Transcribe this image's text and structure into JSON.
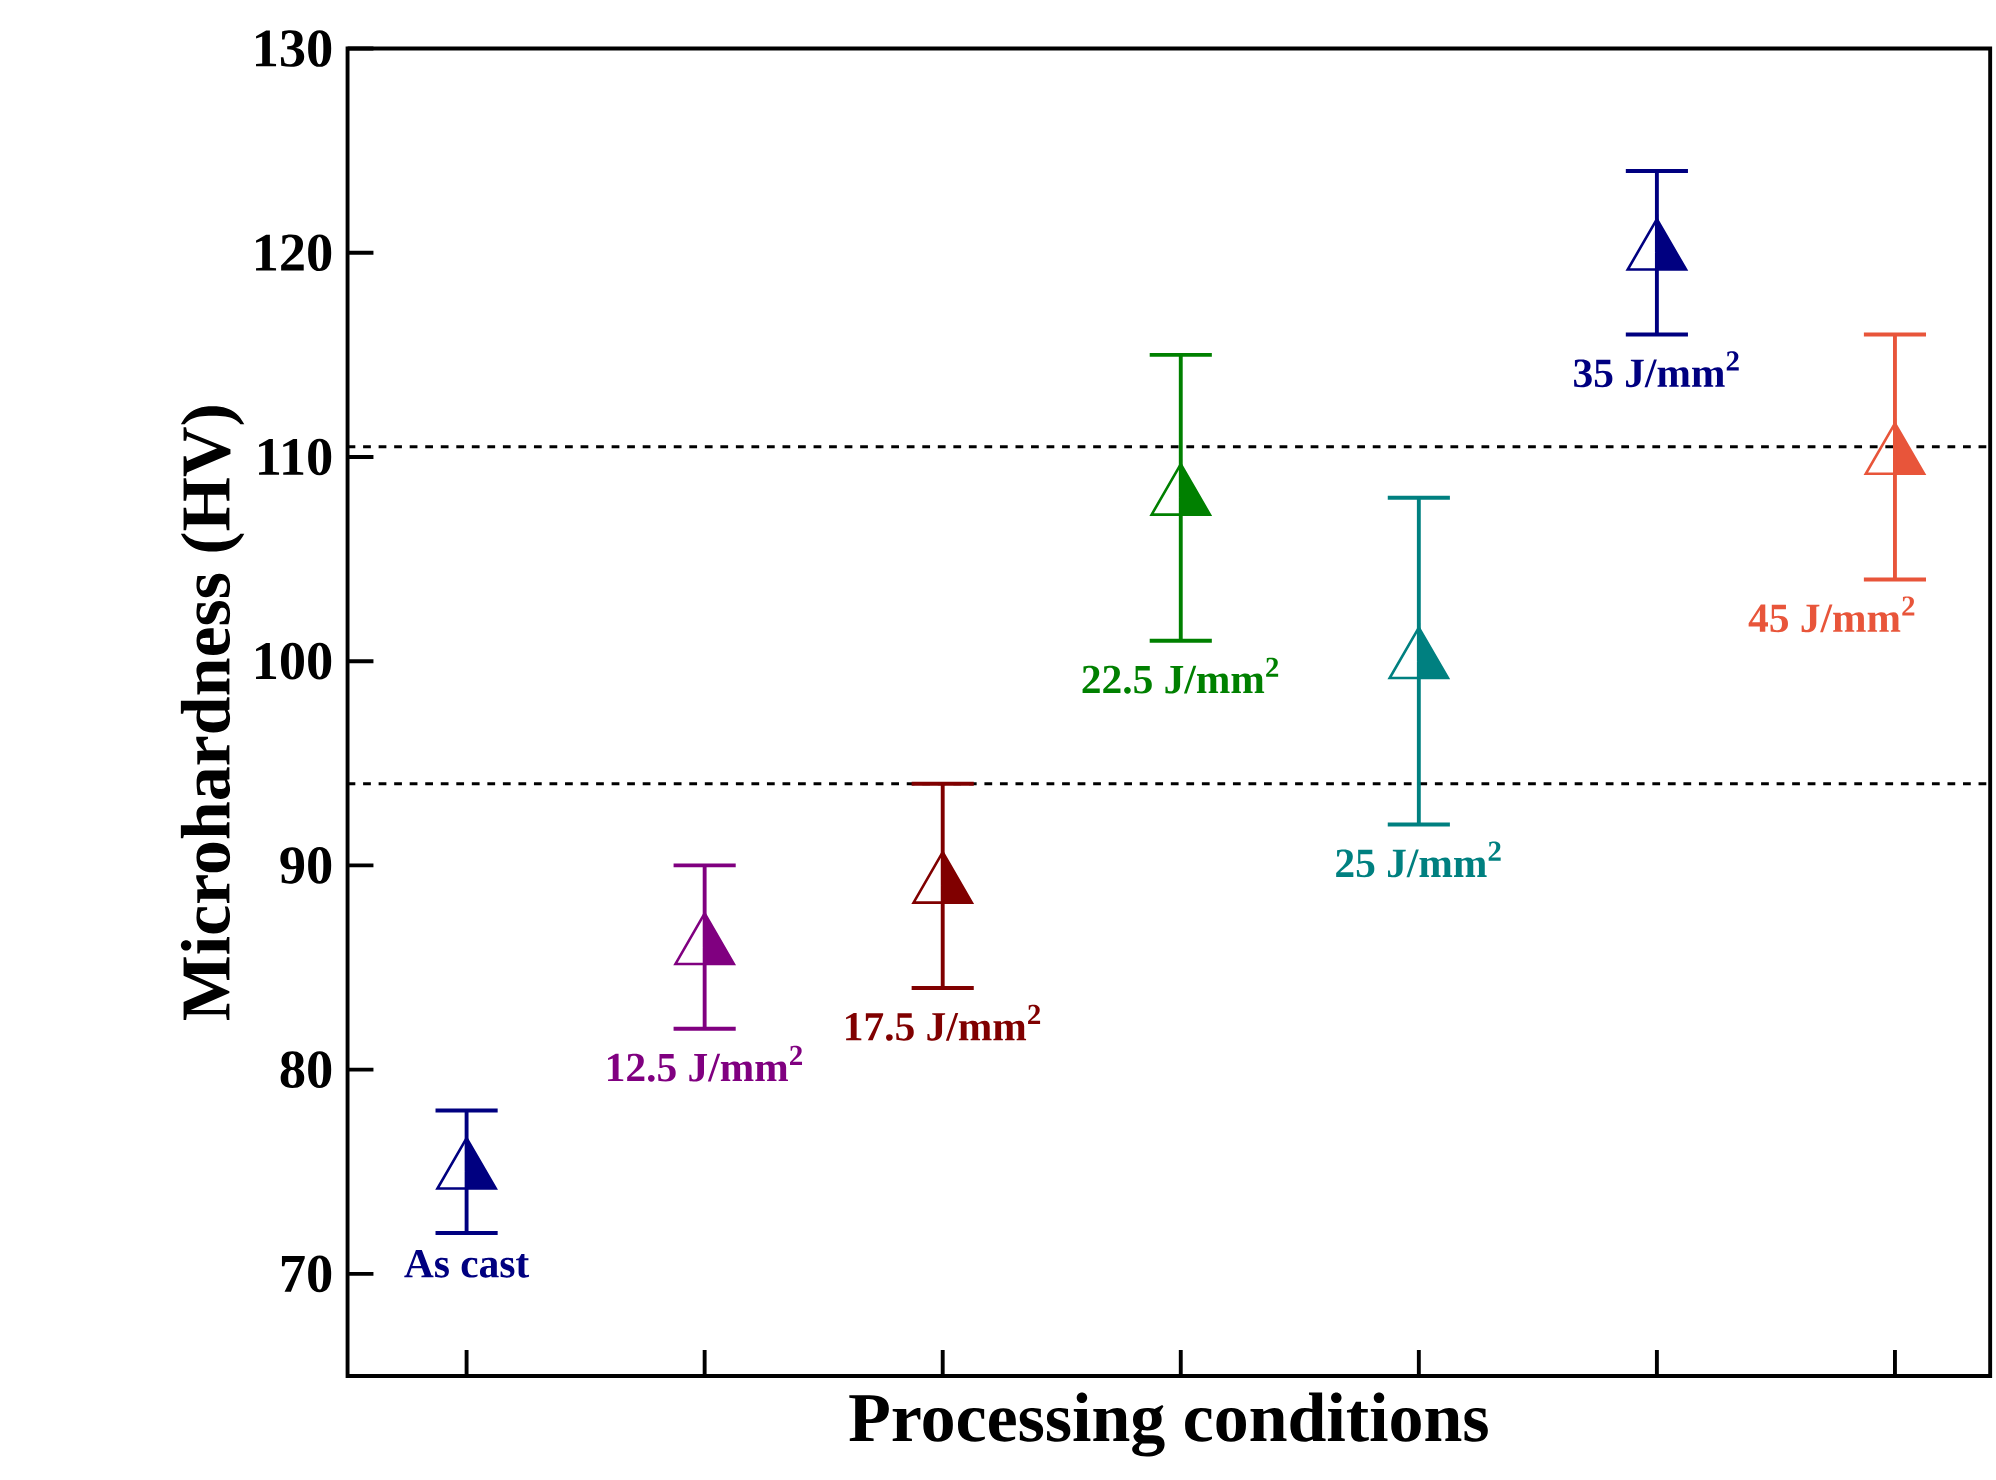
{
  "chart_data": {
    "type": "scatter",
    "xlabel": "Processing conditions",
    "ylabel": "Microhardness (HV)",
    "categories": [
      null,
      null,
      null,
      null,
      null,
      null,
      null
    ],
    "ylim": [
      65,
      130
    ],
    "yticks": [
      70,
      80,
      90,
      100,
      110,
      120,
      130
    ],
    "marker": "triangle",
    "tick_labels": "y",
    "ref_lines": [
      {
        "axis": "y",
        "value": 110.5,
        "line_style": "dashed",
        "color": "#000000"
      },
      {
        "axis": "y",
        "value": 94,
        "line_style": "dashed",
        "color": "#000000"
      }
    ],
    "series": [
      {
        "name": "As cast",
        "color": "#000080",
        "values": [
          75,
          null,
          null,
          null,
          null,
          null,
          null
        ],
        "errors": [
          [
            72,
            78
          ],
          null,
          null,
          null,
          null,
          null,
          null
        ]
      },
      {
        "name": "12.5 J/mm$^{2}$",
        "color": "#800080",
        "values": [
          null,
          86,
          null,
          null,
          null,
          null,
          null
        ],
        "errors": [
          null,
          [
            82,
            90
          ],
          null,
          null,
          null,
          null,
          null
        ]
      },
      {
        "name": "17.5 J/mm$^{2}$",
        "color": "#800000",
        "values": [
          null,
          null,
          89,
          null,
          null,
          null,
          null
        ],
        "errors": [
          null,
          null,
          [
            84,
            94
          ],
          null,
          null,
          null,
          null
        ]
      },
      {
        "name": "22.5 J/mm$^{2}$",
        "color": "#008000",
        "values": [
          null,
          null,
          null,
          108,
          null,
          null,
          null
        ],
        "errors": [
          null,
          null,
          null,
          [
            101,
            115
          ],
          null,
          null,
          null
        ]
      },
      {
        "name": "25 J/mm$^{2}$",
        "color": "#008080",
        "values": [
          null,
          null,
          null,
          null,
          100,
          null,
          null
        ],
        "errors": [
          null,
          null,
          null,
          null,
          [
            92,
            108
          ],
          null,
          null
        ]
      },
      {
        "name": "35 J/mm$^{2}$",
        "color": "#000080",
        "values": [
          null,
          null,
          null,
          null,
          null,
          120,
          null
        ],
        "errors": [
          null,
          null,
          null,
          null,
          null,
          [
            116,
            124
          ],
          null
        ]
      },
      {
        "name": "45 J/mm$^{2}$",
        "color": "#e8553a",
        "values": [
          null,
          null,
          null,
          null,
          null,
          null,
          110
        ],
        "errors": [
          null,
          null,
          null,
          null,
          null,
          null,
          [
            104,
            116
          ]
        ]
      }
    ]
  }
}
